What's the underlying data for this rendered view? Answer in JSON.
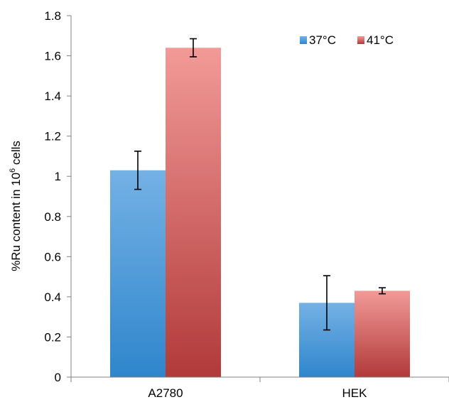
{
  "chart_data": {
    "type": "bar",
    "categories": [
      "A2780",
      "HEK"
    ],
    "series": [
      {
        "name": "37°C",
        "values": [
          1.03,
          0.37
        ],
        "error": [
          0.095,
          0.135
        ],
        "color_top": "#74b1e5",
        "color_bottom": "#2f86cc"
      },
      {
        "name": "41°C",
        "values": [
          1.64,
          0.43
        ],
        "error": [
          0.045,
          0.015
        ],
        "color_top": "#f29a97",
        "color_bottom": "#b13a3a"
      }
    ],
    "ylim": [
      0,
      1.8
    ],
    "yticks": [
      "0",
      "0.2",
      "0.4",
      "0.6",
      "0.8",
      "1",
      "1.2",
      "1.4",
      "1.6",
      "1.8"
    ],
    "ylabel_main": "%Ru content in 10",
    "ylabel_sup": "6",
    "ylabel_tail": " cells",
    "xlabel": "",
    "grid": false,
    "legend_position": "top-right"
  }
}
